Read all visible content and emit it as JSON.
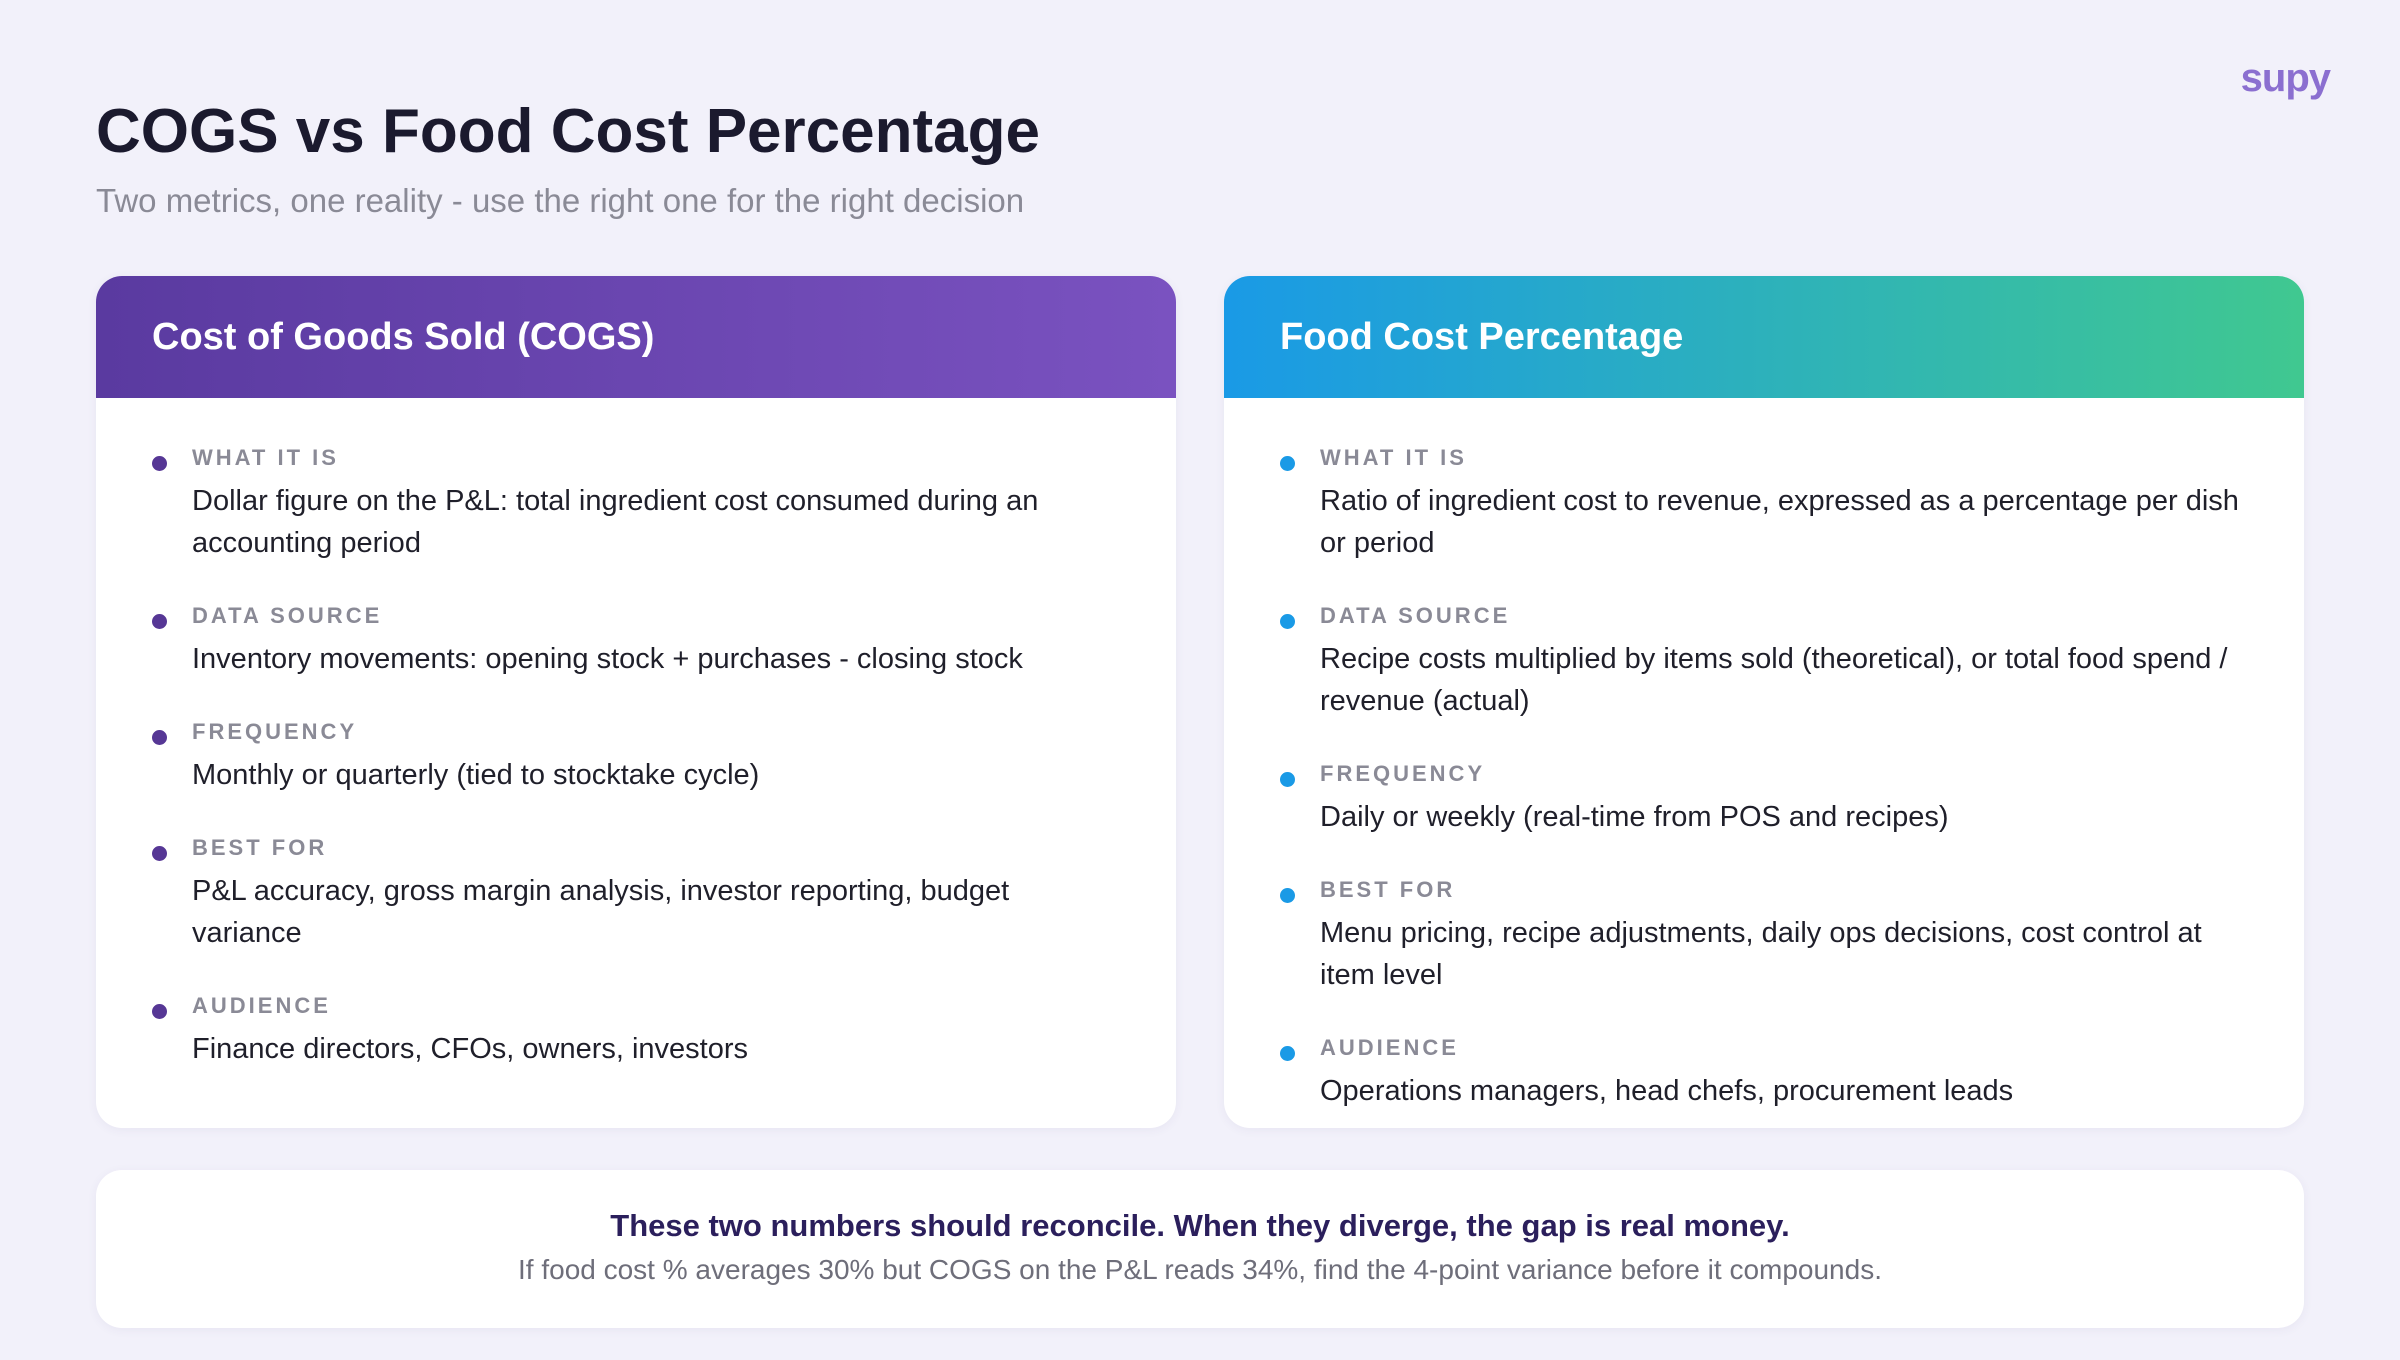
{
  "logo": "supy",
  "title": "COGS vs Food Cost Percentage",
  "subtitle": "Two metrics, one reality - use the right one for the right decision",
  "cards": [
    {
      "heading": "Cost of Goods Sold (COGS)",
      "items": [
        {
          "label": "WHAT IT IS",
          "text": "Dollar figure on the P&L: total ingredient cost consumed during an accounting period"
        },
        {
          "label": "DATA SOURCE",
          "text": "Inventory movements: opening stock + purchases - closing stock"
        },
        {
          "label": "FREQUENCY",
          "text": "Monthly or quarterly (tied to stocktake cycle)"
        },
        {
          "label": "BEST FOR",
          "text": "P&L accuracy, gross margin analysis, investor reporting, budget variance"
        },
        {
          "label": "AUDIENCE",
          "text": "Finance directors, CFOs, owners, investors"
        }
      ]
    },
    {
      "heading": "Food Cost Percentage",
      "items": [
        {
          "label": "WHAT IT IS",
          "text": "Ratio of ingredient cost to revenue, expressed as a percentage per dish or period"
        },
        {
          "label": "DATA SOURCE",
          "text": "Recipe costs multiplied by items sold (theoretical), or total food spend / revenue (actual)"
        },
        {
          "label": "FREQUENCY",
          "text": "Daily or weekly (real-time from POS and recipes)"
        },
        {
          "label": "BEST FOR",
          "text": "Menu pricing, recipe adjustments, daily ops decisions, cost control at item level"
        },
        {
          "label": "AUDIENCE",
          "text": "Operations managers, head chefs, procurement leads"
        }
      ]
    }
  ],
  "banner": {
    "headline": "These two numbers should reconcile. When they diverge, the gap is real money.",
    "detail": "If food cost % averages 30% but COGS on the P&L reads 34%, find the 4-point variance before it compounds."
  }
}
